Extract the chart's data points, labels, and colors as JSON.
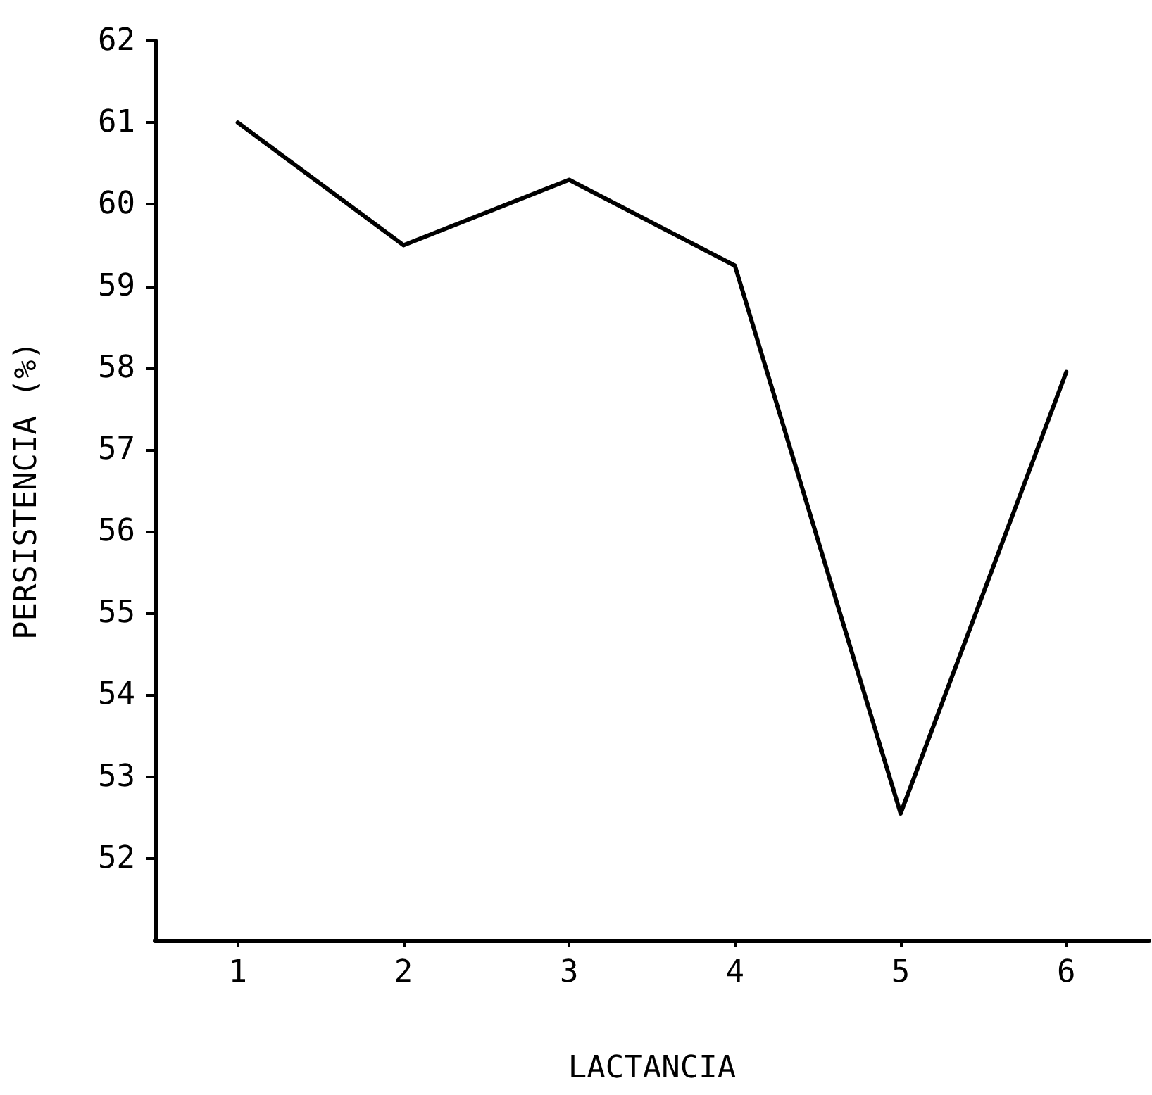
{
  "chart_data": {
    "type": "line",
    "xlabel": "LACTANCIA",
    "ylabel": "PERSISTENCIA (%)",
    "categories": [
      "1",
      "2",
      "3",
      "4",
      "5",
      "6"
    ],
    "values": [
      61.0,
      59.5,
      60.3,
      59.25,
      52.55,
      57.95
    ],
    "color": "#000000",
    "ylim": [
      51,
      62
    ],
    "yticks": [
      52,
      53,
      54,
      55,
      56,
      57,
      58,
      59,
      60,
      61,
      62
    ],
    "grid": false,
    "marker": "none",
    "line_style": "solid"
  }
}
